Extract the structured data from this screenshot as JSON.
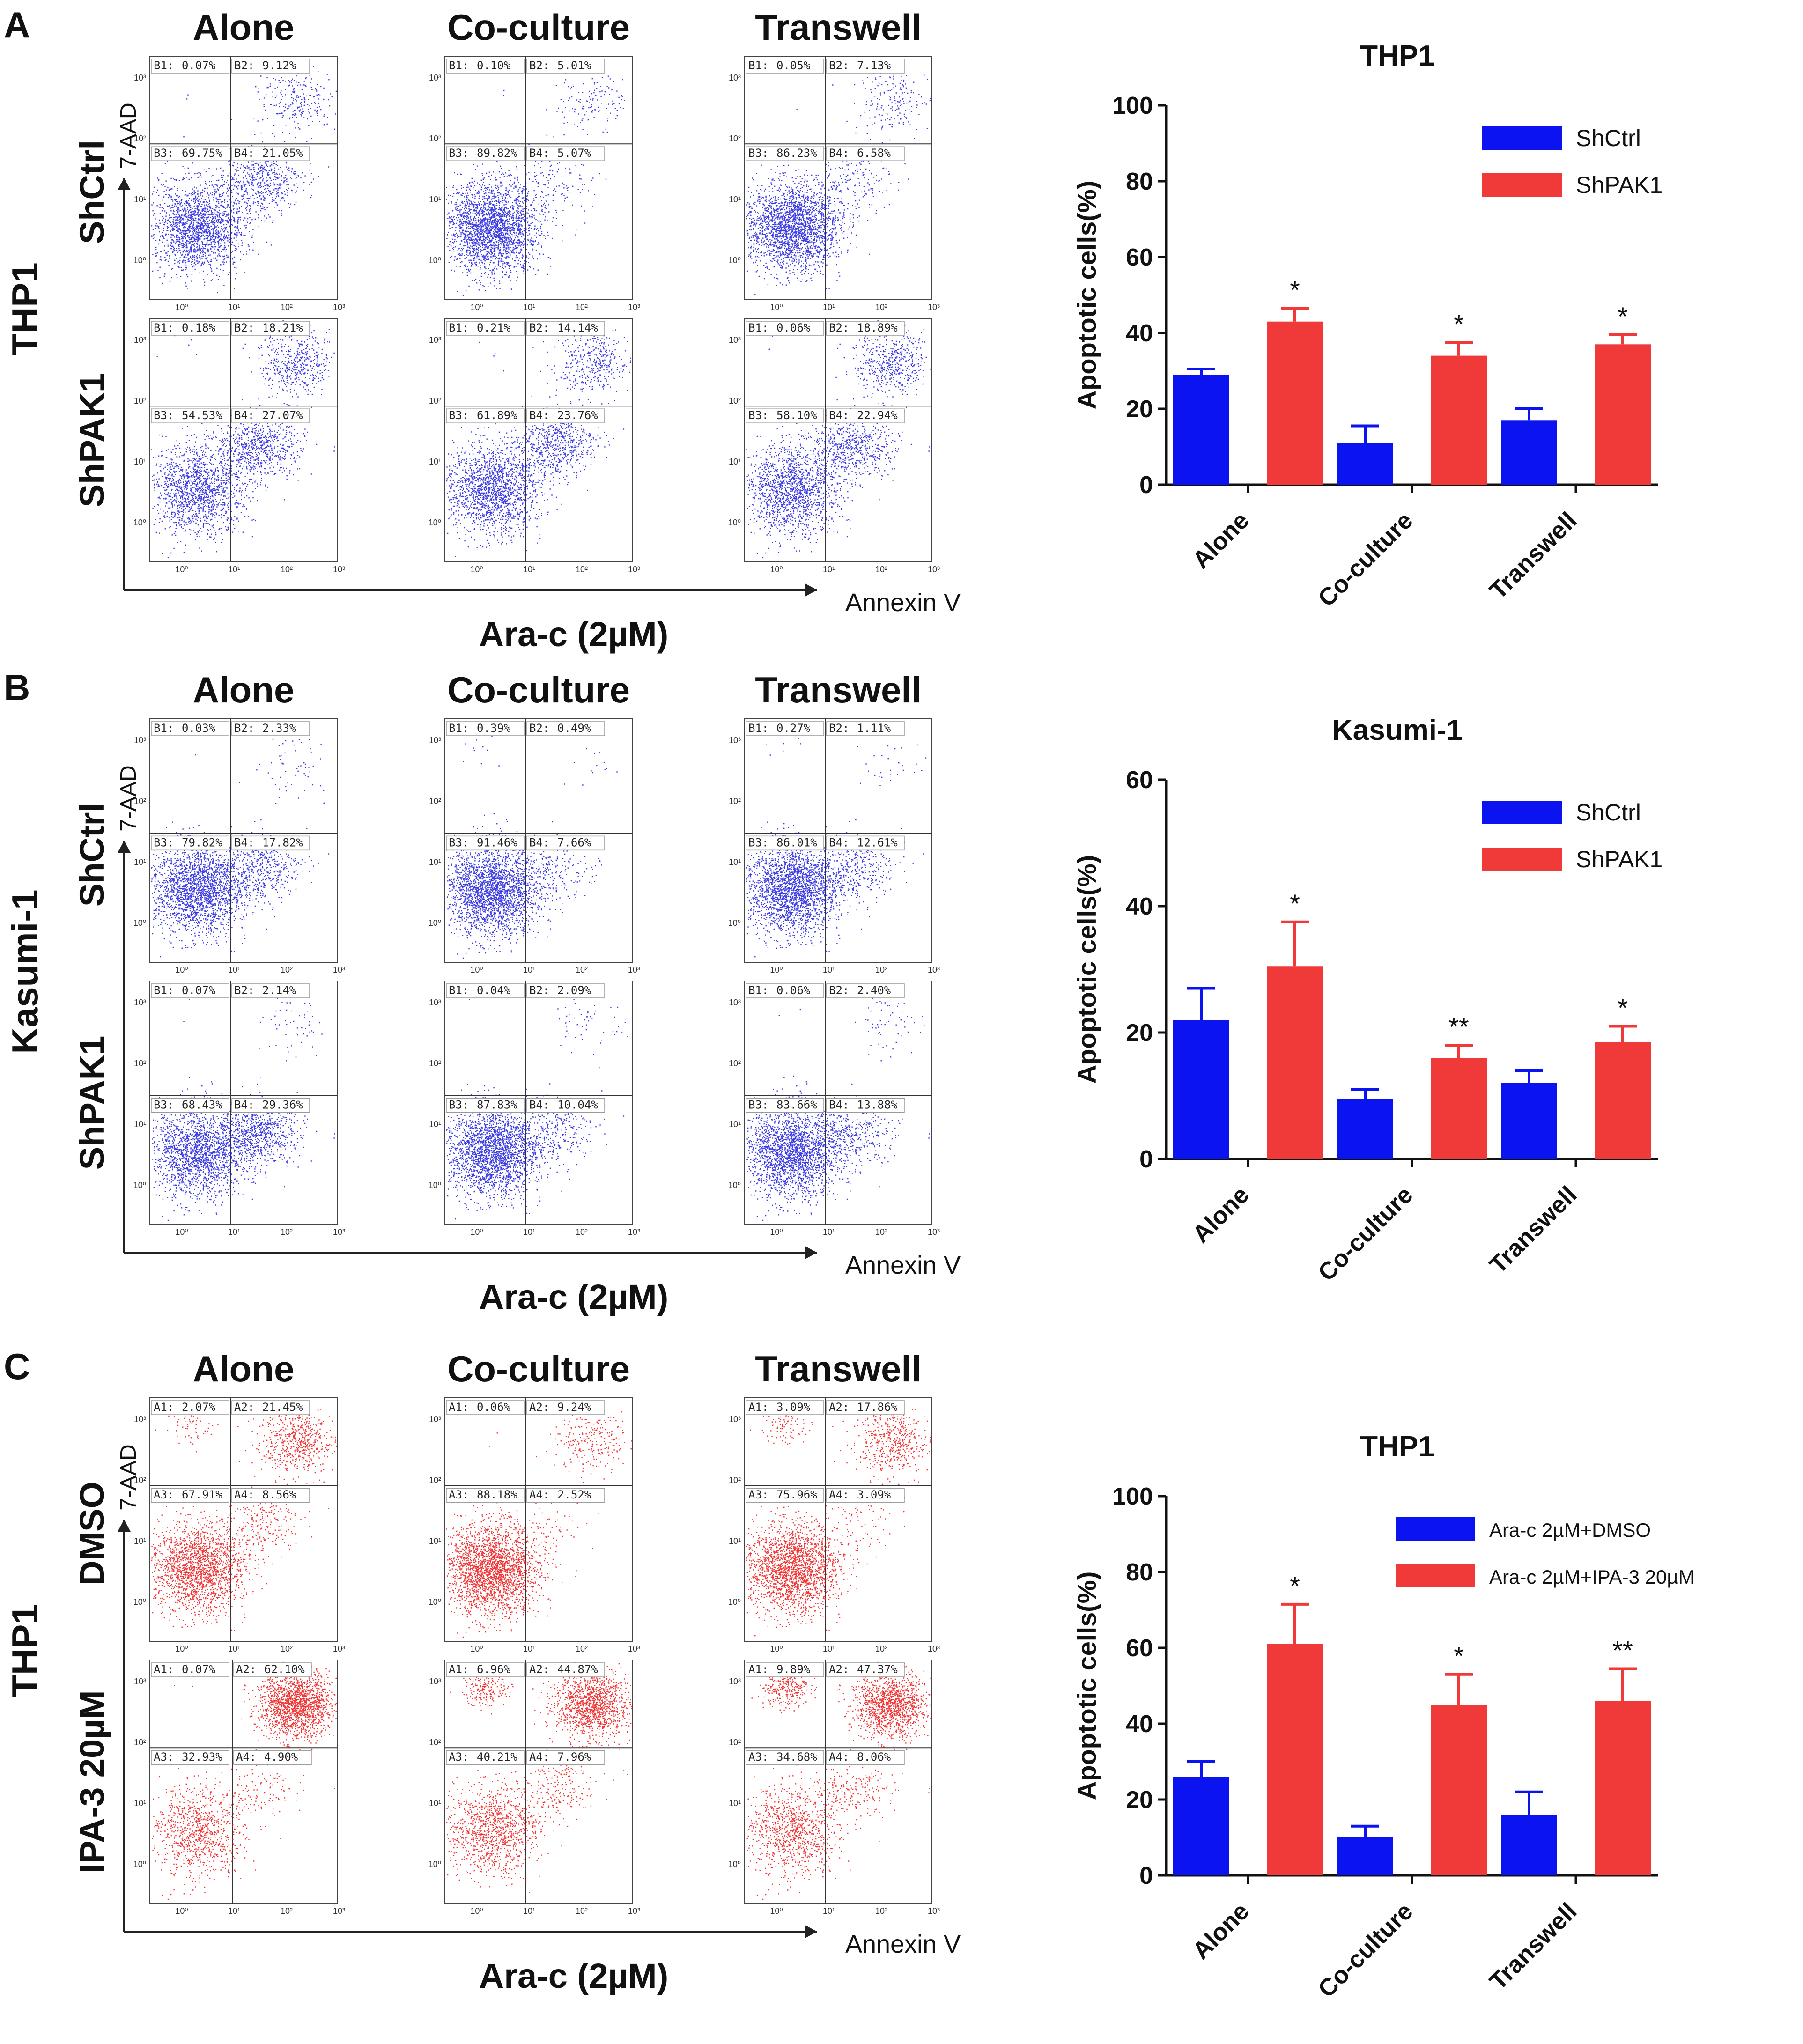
{
  "figure": {
    "panels": [
      {
        "letter": "A",
        "row_title": "THP1",
        "col_titles": [
          "Alone",
          "Co-culture",
          "Transwell"
        ],
        "groups": [
          "ShCtrl",
          "ShPAK1"
        ],
        "color": "#1a1adf",
        "ylabel": "7-AAD",
        "xlabel": "Annexin V",
        "treatment": "Ara-c (2µM)",
        "quadrant_prefix": "B",
        "quadrants": [
          [
            [
              "0.07%",
              "9.12%",
              "69.75%",
              "21.05%"
            ],
            [
              "0.10%",
              "5.01%",
              "89.82%",
              "5.07%"
            ],
            [
              "0.05%",
              "7.13%",
              "86.23%",
              "6.58%"
            ]
          ],
          [
            [
              "0.18%",
              "18.21%",
              "54.53%",
              "27.07%"
            ],
            [
              "0.21%",
              "14.14%",
              "61.89%",
              "23.76%"
            ],
            [
              "0.06%",
              "18.89%",
              "58.10%",
              "22.94%"
            ]
          ]
        ]
      },
      {
        "letter": "B",
        "row_title": "Kasumi-1",
        "col_titles": [
          "Alone",
          "Co-culture",
          "Transwell"
        ],
        "groups": [
          "ShCtrl",
          "ShPAK1"
        ],
        "color": "#1a1adf",
        "ylabel": "7-AAD",
        "xlabel": "Annexin V",
        "treatment": "Ara-c (2µM)",
        "quadrant_prefix": "B",
        "quadrants": [
          [
            [
              "0.03%",
              "2.33%",
              "79.82%",
              "17.82%"
            ],
            [
              "0.39%",
              "0.49%",
              "91.46%",
              "7.66%"
            ],
            [
              "0.27%",
              "1.11%",
              "86.01%",
              "12.61%"
            ]
          ],
          [
            [
              "0.07%",
              "2.14%",
              "68.43%",
              "29.36%"
            ],
            [
              "0.04%",
              "2.09%",
              "87.83%",
              "10.04%"
            ],
            [
              "0.06%",
              "2.40%",
              "83.66%",
              "13.88%"
            ]
          ]
        ]
      },
      {
        "letter": "C",
        "row_title": "THP1",
        "col_titles": [
          "Alone",
          "Co-culture",
          "Transwell"
        ],
        "groups": [
          "DMSO",
          "IPA-3 20µM"
        ],
        "color": "#ee1111",
        "ylabel": "7-AAD",
        "xlabel": "Annexin V",
        "treatment": "Ara-c (2µM)",
        "quadrant_prefix": "A",
        "quadrants": [
          [
            [
              "2.07%",
              "21.45%",
              "67.91%",
              "8.56%"
            ],
            [
              "0.06%",
              "9.24%",
              "88.18%",
              "2.52%"
            ],
            [
              "3.09%",
              "17.86%",
              "75.96%",
              "3.09%"
            ]
          ],
          [
            [
              "0.07%",
              "62.10%",
              "32.93%",
              "4.90%"
            ],
            [
              "6.96%",
              "44.87%",
              "40.21%",
              "7.96%"
            ],
            [
              "9.89%",
              "47.37%",
              "34.68%",
              "8.06%"
            ]
          ]
        ]
      }
    ],
    "tick_labels": [
      "10⁰",
      "10¹",
      "10²",
      "10³"
    ]
  },
  "chart_data": [
    {
      "type": "bar",
      "title": "THP1",
      "ylabel": "Apoptotic cells(%)",
      "ylim": [
        0,
        100
      ],
      "yticks": [
        0,
        20,
        40,
        60,
        80,
        100
      ],
      "categories": [
        "Alone",
        "Co-culture",
        "Transwell"
      ],
      "series": [
        {
          "name": "ShCtrl",
          "color": "#0b14f0",
          "values": [
            29,
            11,
            17
          ],
          "errors": [
            1.5,
            4.5,
            3
          ]
        },
        {
          "name": "ShPAK1",
          "color": "#f03a3a",
          "values": [
            43,
            34,
            37
          ],
          "errors": [
            3.5,
            3.5,
            2.5
          ]
        }
      ],
      "annotations": [
        "*",
        "*",
        "*"
      ],
      "legend": "top-right"
    },
    {
      "type": "bar",
      "title": "Kasumi-1",
      "ylabel": "Apoptotic cells(%)",
      "ylim": [
        0,
        60
      ],
      "yticks": [
        0,
        20,
        40,
        60
      ],
      "categories": [
        "Alone",
        "Co-culture",
        "Transwell"
      ],
      "series": [
        {
          "name": "ShCtrl",
          "color": "#0b14f0",
          "values": [
            22,
            9.5,
            12
          ],
          "errors": [
            5,
            1.5,
            2
          ]
        },
        {
          "name": "ShPAK1",
          "color": "#f03a3a",
          "values": [
            30.5,
            16,
            18.5
          ],
          "errors": [
            7,
            2,
            2.5
          ]
        }
      ],
      "annotations": [
        "*",
        "**",
        "*"
      ],
      "legend": "top-right"
    },
    {
      "type": "bar",
      "title": "THP1",
      "ylabel": "Apoptotic cells(%)",
      "ylim": [
        0,
        100
      ],
      "yticks": [
        0,
        20,
        40,
        60,
        80,
        100
      ],
      "categories": [
        "Alone",
        "Co-culture",
        "Transwell"
      ],
      "series": [
        {
          "name": "Ara-c 2µM+DMSO",
          "color": "#0b14f0",
          "values": [
            26,
            10,
            16
          ],
          "errors": [
            4,
            3,
            6
          ]
        },
        {
          "name": "Ara-c 2µM+IPA-3 20µM",
          "color": "#f03a3a",
          "values": [
            61,
            45,
            46
          ],
          "errors": [
            10.5,
            8,
            8.5
          ]
        }
      ],
      "annotations": [
        "*",
        "*",
        "**"
      ],
      "legend": "top-right"
    }
  ]
}
